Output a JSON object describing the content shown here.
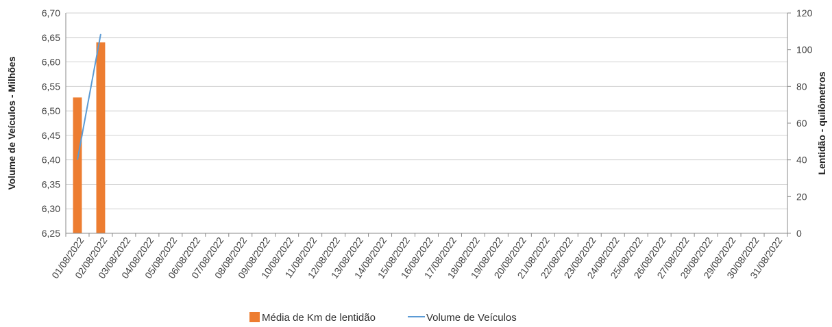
{
  "chart_data": {
    "type": "bar+line",
    "categories": [
      "01/08/2022",
      "02/08/2022",
      "03/08/2022",
      "04/08/2022",
      "05/08/2022",
      "06/08/2022",
      "07/08/2022",
      "08/08/2022",
      "09/08/2022",
      "10/08/2022",
      "11/08/2022",
      "12/08/2022",
      "13/08/2022",
      "14/08/2022",
      "15/08/2022",
      "16/08/2022",
      "17/08/2022",
      "18/08/2022",
      "19/08/2022",
      "20/08/2022",
      "21/08/2022",
      "22/08/2022",
      "23/08/2022",
      "24/08/2022",
      "25/08/2022",
      "26/08/2022",
      "27/08/2022",
      "28/08/2022",
      "29/08/2022",
      "30/08/2022",
      "31/08/2022"
    ],
    "bar_series": {
      "name": "Média de Km de lentidão",
      "axis": "right",
      "color": "#ED7D31",
      "values": [
        74,
        104,
        null,
        null,
        null,
        null,
        null,
        null,
        null,
        null,
        null,
        null,
        null,
        null,
        null,
        null,
        null,
        null,
        null,
        null,
        null,
        null,
        null,
        null,
        null,
        null,
        null,
        null,
        null,
        null,
        null
      ]
    },
    "line_series": {
      "name": "Volume de Veículos",
      "axis": "left",
      "color": "#5B9BD5",
      "values": [
        6.4,
        6.657,
        null,
        null,
        null,
        null,
        null,
        null,
        null,
        null,
        null,
        null,
        null,
        null,
        null,
        null,
        null,
        null,
        null,
        null,
        null,
        null,
        null,
        null,
        null,
        null,
        null,
        null,
        null,
        null,
        null
      ]
    },
    "left_axis": {
      "label": "Volume de Veículos  - Milhões",
      "ylim": [
        6.25,
        6.7
      ],
      "ticks": [
        "6,25",
        "6,30",
        "6,35",
        "6,40",
        "6,45",
        "6,50",
        "6,55",
        "6,60",
        "6,65",
        "6,70"
      ]
    },
    "right_axis": {
      "label": "Lentidão - quilômetros",
      "ylim": [
        0,
        120
      ],
      "ticks": [
        "0",
        "20",
        "40",
        "60",
        "80",
        "100",
        "120"
      ]
    },
    "grid": true,
    "legend_position": "bottom"
  }
}
